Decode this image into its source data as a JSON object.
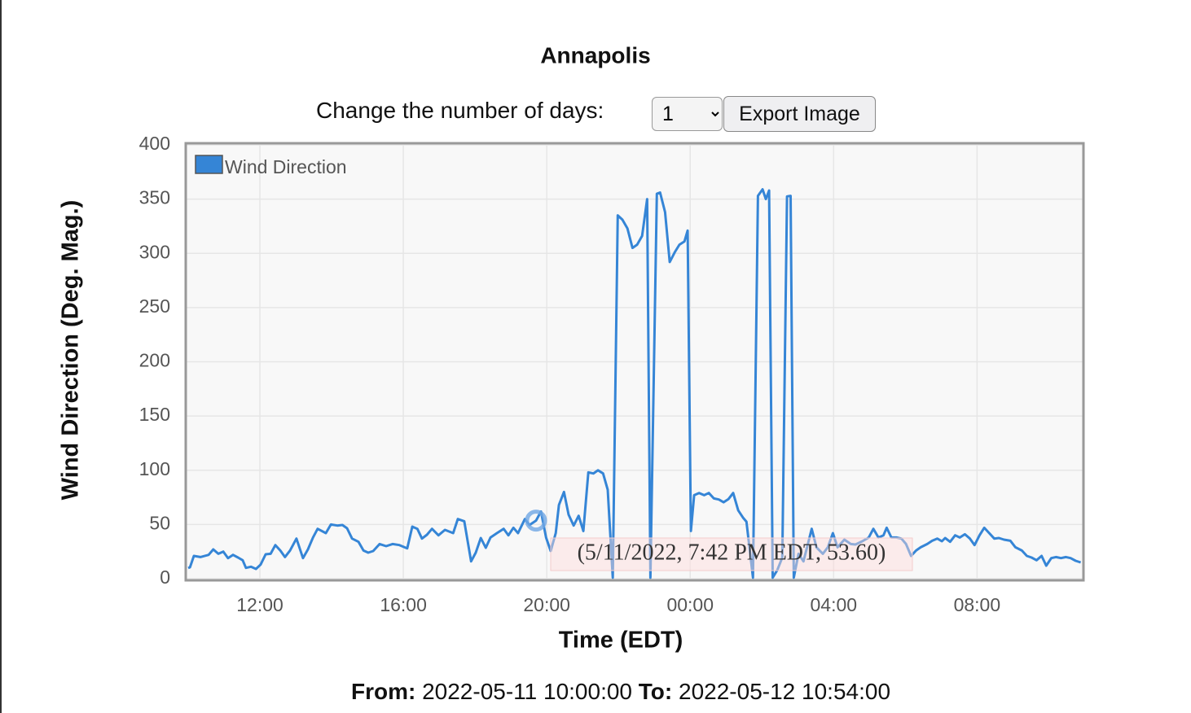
{
  "page_title": "Annapolis",
  "controls": {
    "days_label": "Change the number of days:",
    "days_value": "1",
    "export_button": "Export Image"
  },
  "chart_data": {
    "type": "line",
    "ylabel": "Wind Direction (Deg. Mag.)",
    "xlabel": "Time (EDT)",
    "xlim": [
      10,
      34.9
    ],
    "ylim": [
      0,
      400
    ],
    "yticks": [
      0,
      50,
      100,
      150,
      200,
      250,
      300,
      350,
      400
    ],
    "xticks": [
      {
        "value": 12,
        "label": "12:00"
      },
      {
        "value": 16,
        "label": "16:00"
      },
      {
        "value": 20,
        "label": "20:00"
      },
      {
        "value": 24,
        "label": "00:00"
      },
      {
        "value": 28,
        "label": "04:00"
      },
      {
        "value": 32,
        "label": "08:00"
      }
    ],
    "grid": true,
    "legend": "upper left",
    "tooltip": "(5/11/2022, 7:42 PM EDT, 53.60)",
    "x": [
      10.0,
      10.05,
      10.16,
      10.34,
      10.57,
      10.7,
      10.84,
      10.98,
      11.11,
      11.25,
      11.39,
      11.52,
      11.61,
      11.75,
      11.89,
      12.02,
      12.16,
      12.3,
      12.43,
      12.57,
      12.7,
      12.84,
      13.02,
      13.2,
      13.34,
      13.48,
      13.61,
      13.84,
      13.98,
      14.16,
      14.3,
      14.43,
      14.57,
      14.75,
      14.89,
      15.02,
      15.16,
      15.34,
      15.52,
      15.7,
      15.89,
      16.11,
      16.25,
      16.39,
      16.52,
      16.66,
      16.8,
      16.98,
      17.16,
      17.39,
      17.52,
      17.7,
      17.89,
      18.02,
      18.16,
      18.3,
      18.43,
      18.61,
      18.8,
      18.93,
      19.07,
      19.2,
      19.39,
      19.52,
      19.7,
      19.84,
      19.98,
      20.11,
      20.25,
      20.34,
      20.48,
      20.61,
      20.75,
      20.89,
      21.02,
      21.16,
      21.3,
      21.43,
      21.57,
      21.7,
      21.84,
      21.98,
      22.11,
      22.25,
      22.39,
      22.52,
      22.66,
      22.8,
      22.89,
      23.07,
      23.16,
      23.3,
      23.43,
      23.57,
      23.7,
      23.84,
      23.93,
      24.02,
      24.11,
      24.25,
      24.39,
      24.52,
      24.66,
      24.8,
      24.93,
      25.07,
      25.2,
      25.34,
      25.48,
      25.57,
      25.75,
      25.89,
      26.02,
      26.11,
      26.2,
      26.3,
      26.43,
      26.57,
      26.7,
      26.8,
      26.89,
      27.02,
      27.16,
      27.39,
      27.52,
      27.7,
      27.84,
      27.98,
      28.11,
      28.3,
      28.48,
      28.61,
      28.8,
      28.98,
      29.11,
      29.25,
      29.39,
      29.48,
      29.61,
      29.75,
      29.89,
      30.02,
      30.16,
      30.3,
      30.43,
      30.61,
      30.75,
      30.89,
      31.02,
      31.11,
      31.25,
      31.39,
      31.52,
      31.66,
      31.8,
      31.93,
      32.07,
      32.2,
      32.34,
      32.48,
      32.61,
      32.75,
      32.93,
      33.07,
      33.25,
      33.39,
      33.52,
      33.66,
      33.8,
      33.93,
      34.07,
      34.2,
      34.34,
      34.48,
      34.61,
      34.75,
      34.89
    ],
    "series": [
      {
        "name": "Wind Direction",
        "color": "#3585d6",
        "values": [
          9.8,
          10.5,
          21,
          20,
          22,
          27,
          23,
          25,
          19,
          22,
          19.5,
          17,
          10,
          11,
          9,
          13,
          22.5,
          23,
          31,
          26,
          20,
          26,
          37,
          19,
          27,
          38,
          46,
          42,
          50,
          49,
          49.5,
          46.5,
          37,
          34,
          26,
          24,
          25.5,
          32,
          30,
          32,
          31,
          28,
          48,
          46,
          37,
          40.5,
          46,
          40,
          45,
          42,
          55,
          53,
          16,
          24,
          37.5,
          28.5,
          38,
          42,
          46,
          40,
          47,
          42,
          55,
          49.5,
          53.6,
          62,
          38,
          25.5,
          42,
          68,
          80,
          59,
          49,
          58,
          44,
          98,
          97,
          100,
          97,
          82,
          1,
          335,
          331,
          323,
          305,
          308,
          316,
          350,
          1,
          355,
          356,
          338,
          292,
          301,
          308,
          311,
          321,
          44,
          77,
          79,
          77,
          79,
          74,
          73,
          70.5,
          73.5,
          79,
          63,
          56,
          52.5,
          1,
          353,
          359,
          350,
          358,
          1,
          8,
          19.5,
          352.5,
          353,
          1,
          23,
          16,
          46,
          29,
          23,
          29,
          42,
          29,
          36,
          32,
          31.5,
          34.5,
          38,
          46,
          38,
          40,
          47,
          38,
          38,
          37,
          32,
          21,
          26,
          29,
          32,
          35,
          37,
          34.5,
          37.5,
          34,
          40,
          38,
          41,
          37,
          31,
          40,
          47,
          42,
          37,
          37.5,
          36,
          35,
          29,
          26,
          21,
          19.5,
          17,
          21,
          12,
          19,
          20,
          19,
          20,
          19,
          16.5,
          15
        ]
      }
    ]
  },
  "footer": {
    "from_label": "From:",
    "from": "2022-05-11 10:00:00",
    "to_label": "To:",
    "to": "2022-05-12 10:54:00"
  }
}
